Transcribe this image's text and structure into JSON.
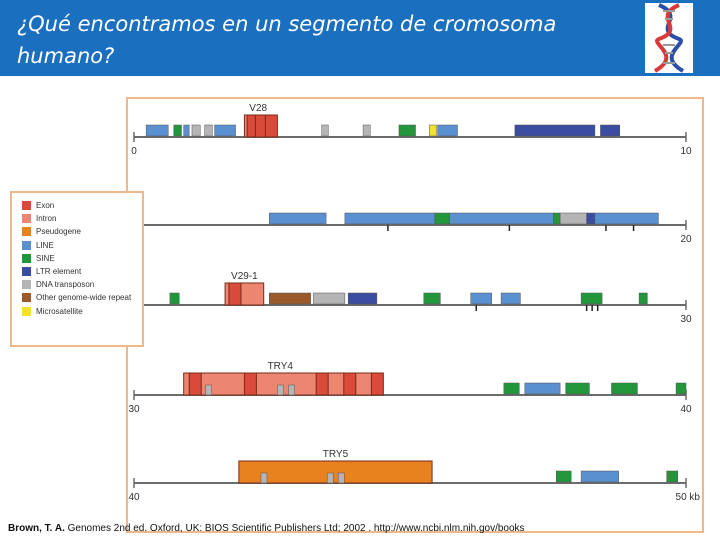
{
  "slide": {
    "title_line1": "¿Qué encontramos en un segmento de cromosoma",
    "title_line2": "humano?",
    "logo_icon": "dna-helix-icon"
  },
  "colors": {
    "title_bar": "#1a6fbf",
    "frame": "#f0b889",
    "axis": "#6b6b6b"
  },
  "legend": {
    "items": [
      {
        "label": "Exon",
        "color": "#d94a3a"
      },
      {
        "label": "Intron",
        "color": "#ec8670"
      },
      {
        "label": "Pseudogene",
        "color": "#e8821e"
      },
      {
        "label": "LINE",
        "color": "#5a8fd0"
      },
      {
        "label": "SINE",
        "color": "#23963c"
      },
      {
        "label": "LTR element",
        "color": "#3a4da0"
      },
      {
        "label": "DNA transposon",
        "color": "#b5b5b5"
      },
      {
        "label": "Other genome-wide repeat",
        "color": "#9a5a2c"
      },
      {
        "label": "Microsatellite",
        "color": "#f2e22c"
      }
    ]
  },
  "chart_data": {
    "type": "genome-map",
    "units": "kb",
    "rows": [
      {
        "range": [
          0,
          10
        ],
        "tick_labels": [
          "0",
          "10"
        ],
        "genes": [
          {
            "name": "V28",
            "start": 2.0,
            "end": 2.5
          }
        ],
        "elements": [
          {
            "type": "LINE",
            "start": 0.22,
            "end": 0.62
          },
          {
            "type": "SINE",
            "start": 0.72,
            "end": 0.86
          },
          {
            "type": "LINE",
            "start": 0.9,
            "end": 1.0
          },
          {
            "type": "DNA transposon",
            "start": 1.05,
            "end": 1.2
          },
          {
            "type": "DNA transposon",
            "start": 1.28,
            "end": 1.42
          },
          {
            "type": "LINE",
            "start": 1.46,
            "end": 1.84
          },
          {
            "type": "DNA transposon",
            "start": 3.4,
            "end": 3.52
          },
          {
            "type": "DNA transposon",
            "start": 4.15,
            "end": 4.28
          },
          {
            "type": "SINE",
            "start": 4.8,
            "end": 5.1
          },
          {
            "type": "Microsatellite",
            "start": 5.35,
            "end": 5.48
          },
          {
            "type": "LINE",
            "start": 5.5,
            "end": 5.86
          },
          {
            "type": "LTR element",
            "start": 6.9,
            "end": 8.35
          },
          {
            "type": "LTR element",
            "start": 8.45,
            "end": 8.8
          }
        ],
        "exons": [
          2.05,
          2.2,
          2.38
        ],
        "intron_boxes": [],
        "small_ticks": []
      },
      {
        "range": [
          10,
          20
        ],
        "tick_labels": [
          "",
          "20"
        ],
        "genes": [],
        "elements": [
          {
            "type": "LINE",
            "start": 12.45,
            "end": 13.48
          },
          {
            "type": "LINE",
            "start": 13.82,
            "end": 15.45
          },
          {
            "type": "SINE",
            "start": 15.45,
            "end": 15.72
          },
          {
            "type": "LINE",
            "start": 15.72,
            "end": 17.6
          },
          {
            "type": "SINE",
            "start": 17.6,
            "end": 17.72
          },
          {
            "type": "DNA transposon",
            "start": 17.72,
            "end": 18.2
          },
          {
            "type": "LTR element",
            "start": 18.2,
            "end": 18.35
          },
          {
            "type": "LINE",
            "start": 18.35,
            "end": 19.5
          }
        ],
        "exons": [],
        "intron_boxes": [],
        "small_ticks": [
          14.6,
          16.8,
          18.55,
          19.05
        ]
      },
      {
        "range": [
          20,
          30
        ],
        "tick_labels": [
          "",
          "30"
        ],
        "genes": [
          {
            "name": "V29-1",
            "start": 21.65,
            "end": 22.35
          }
        ],
        "elements": [
          {
            "type": "SINE",
            "start": 20.65,
            "end": 20.82
          },
          {
            "type": "Other genome-wide repeat",
            "start": 22.45,
            "end": 23.2
          },
          {
            "type": "DNA transposon",
            "start": 23.25,
            "end": 23.82
          },
          {
            "type": "LTR element",
            "start": 23.88,
            "end": 24.4
          },
          {
            "type": "SINE",
            "start": 25.25,
            "end": 25.55
          },
          {
            "type": "LINE",
            "start": 26.1,
            "end": 26.48
          },
          {
            "type": "LINE",
            "start": 26.65,
            "end": 27.0
          },
          {
            "type": "SINE",
            "start": 28.1,
            "end": 28.48
          },
          {
            "type": "SINE",
            "start": 29.15,
            "end": 29.3
          }
        ],
        "exons": [
          21.72
        ],
        "intron_boxes": [],
        "small_ticks": [
          26.2,
          28.2,
          28.3,
          28.4
        ]
      },
      {
        "range": [
          30,
          40
        ],
        "tick_labels": [
          "30",
          "40"
        ],
        "genes": [
          {
            "name": "TRY4",
            "start": 30.9,
            "end": 34.4
          }
        ],
        "elements": [
          {
            "type": "SINE",
            "start": 36.7,
            "end": 36.98
          },
          {
            "type": "LINE",
            "start": 37.08,
            "end": 37.72
          },
          {
            "type": "SINE",
            "start": 37.82,
            "end": 38.25
          },
          {
            "type": "SINE",
            "start": 38.65,
            "end": 39.12
          },
          {
            "type": "SINE",
            "start": 39.82,
            "end": 40.0
          }
        ],
        "exons": [
          31.0,
          32.0,
          33.3,
          33.8,
          34.3
        ],
        "intron_boxes": [
          31.3,
          32.6,
          32.8
        ],
        "small_ticks": []
      },
      {
        "range": [
          40,
          50
        ],
        "tick_labels": [
          "40",
          "50 kb"
        ],
        "genes": [
          {
            "name": "TRY5",
            "start": 41.9,
            "end": 45.4
          }
        ],
        "elements": [
          {
            "type": "SINE",
            "start": 47.65,
            "end": 47.92
          },
          {
            "type": "LINE",
            "start": 48.1,
            "end": 48.78
          },
          {
            "type": "SINE",
            "start": 49.65,
            "end": 49.85
          }
        ],
        "exons": [],
        "intron_boxes": [
          42.3,
          43.5,
          43.7
        ],
        "small_ticks": []
      }
    ]
  },
  "citation": {
    "author": "Brown, T. A.",
    "rest": " Genomes 2nd ed. Oxford, UK: BIOS Scientific Publishers Ltd; 2002 . http://www.ncbi.nlm.nih.gov/books"
  }
}
